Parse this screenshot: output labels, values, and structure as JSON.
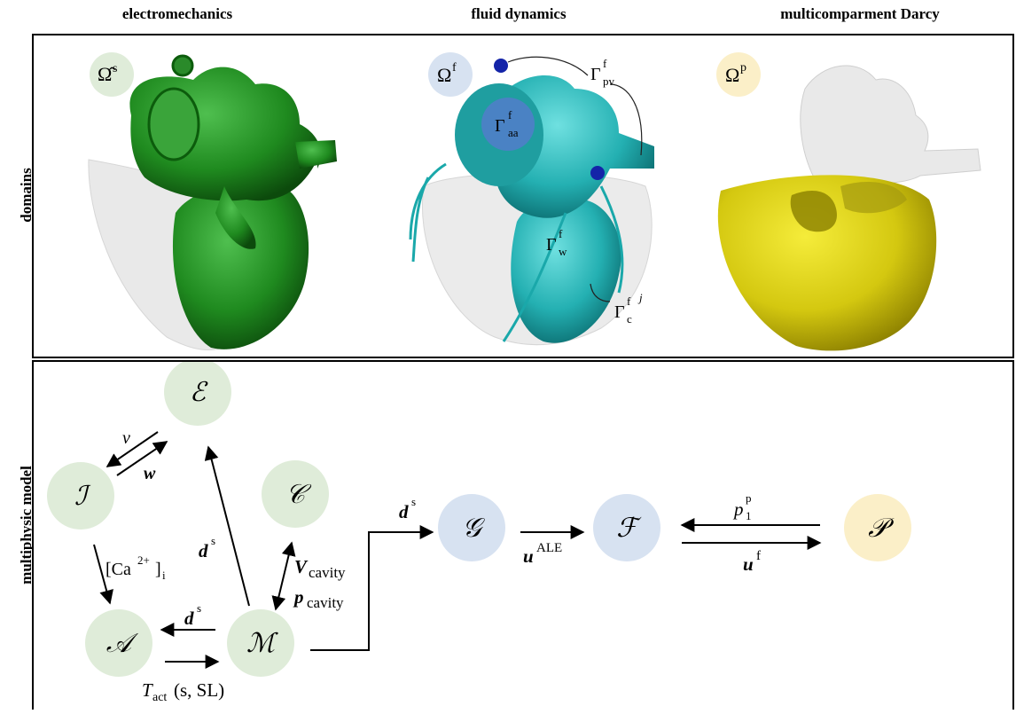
{
  "columns": [
    "electromechanics",
    "fluid dynamics",
    "multicomparment Darcy"
  ],
  "rows": [
    "domains",
    "multiphysic model"
  ],
  "colors": {
    "electro_node": "#dfecd9",
    "fluid_node": "#d7e2f1",
    "darcy_node": "#fbefc8",
    "heart_green": "#2a8a2a",
    "heart_cyan": "#2aaeb0",
    "heart_yellow": "#d8cc10",
    "marker_blue": "#1424a8",
    "disc_blue": "#4a82c4"
  },
  "domains": {
    "solid": {
      "symbol": "Ω̂",
      "sup": "s"
    },
    "fluid": {
      "symbol": "Ω",
      "sup": "f"
    },
    "darcy": {
      "symbol": "Ω",
      "sup": "p"
    },
    "labels": {
      "pv": {
        "base": "Γ",
        "sup": "f",
        "sub": "pv"
      },
      "aa": {
        "base": "Γ",
        "sup": "f",
        "sub": "aa"
      },
      "w": {
        "base": "Γ",
        "sup": "f",
        "sub": "w"
      },
      "c": {
        "base": "Γ",
        "sup": "f",
        "sub": "c",
        "sup2": "j"
      }
    }
  },
  "nodes": {
    "E": "ℰ",
    "I": "ℐ",
    "A": "𝒜",
    "M": "ℳ",
    "C": "𝒞",
    "G": "𝒢",
    "F": "ℱ",
    "P": "𝒫"
  },
  "arrows": {
    "v": "v",
    "w": "w",
    "ca_base": "[Ca",
    "ca_sup": "2+",
    "ca_close": "]",
    "ca_sub": "i",
    "d": "d",
    "d_sup": "s",
    "v_cavity": "V",
    "v_cavity_sub": "cavity",
    "p_cavity": "p",
    "p_cavity_sub": "cavity",
    "u": "u",
    "u_ale_sup": "ALE",
    "u_f_sup": "f",
    "p_base": "p",
    "p_sup": "p",
    "p_sub": "1",
    "tact_base": "T",
    "tact_sub": "act",
    "tact_args": "(s, SL)"
  }
}
